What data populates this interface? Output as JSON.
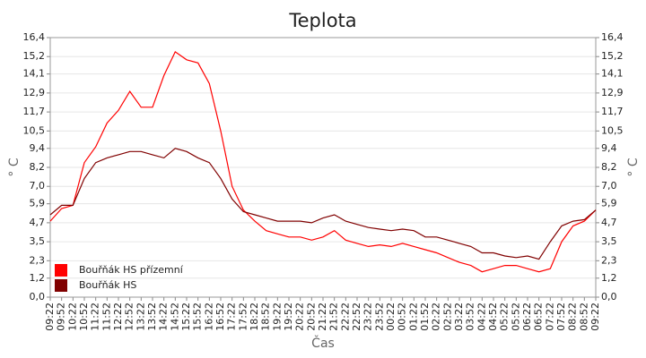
{
  "chart_data": {
    "type": "line",
    "title": "Teplota",
    "y_label": "° C",
    "x_label": "Čas",
    "categories": [
      "09:22",
      "09:52",
      "10:22",
      "10:52",
      "11:22",
      "11:52",
      "12:22",
      "12:52",
      "13:22",
      "13:52",
      "14:22",
      "14:52",
      "15:22",
      "15:52",
      "16:22",
      "16:52",
      "17:22",
      "17:52",
      "18:22",
      "18:52",
      "19:22",
      "19:52",
      "20:22",
      "20:52",
      "21:22",
      "21:52",
      "22:22",
      "22:52",
      "23:22",
      "23:52",
      "00:22",
      "00:52",
      "01:22",
      "01:52",
      "02:22",
      "02:52",
      "03:22",
      "03:52",
      "04:22",
      "04:52",
      "05:22",
      "05:52",
      "06:22",
      "06:52",
      "07:22",
      "07:52",
      "08:22",
      "08:52",
      "09:22"
    ],
    "series": [
      {
        "name": "Bouřňák HS přízemní",
        "color": "#ff0000",
        "values": [
          4.8,
          5.6,
          5.8,
          8.5,
          9.5,
          11.0,
          11.8,
          13.0,
          12.0,
          12.0,
          14.0,
          15.5,
          15.0,
          14.8,
          13.5,
          10.5,
          7.0,
          5.5,
          4.8,
          4.2,
          4.0,
          3.8,
          3.8,
          3.6,
          3.8,
          4.2,
          3.6,
          3.4,
          3.2,
          3.3,
          3.2,
          3.4,
          3.2,
          3.0,
          2.8,
          2.5,
          2.2,
          2.0,
          1.6,
          1.8,
          2.0,
          2.0,
          1.8,
          1.6,
          1.8,
          3.5,
          4.5,
          4.8,
          5.5
        ]
      },
      {
        "name": "Bouřňák HS",
        "color": "#800000",
        "values": [
          5.2,
          5.8,
          5.8,
          7.5,
          8.5,
          8.8,
          9.0,
          9.2,
          9.2,
          9.0,
          8.8,
          9.4,
          9.2,
          8.8,
          8.5,
          7.5,
          6.2,
          5.4,
          5.2,
          5.0,
          4.8,
          4.8,
          4.8,
          4.7,
          5.0,
          5.2,
          4.8,
          4.6,
          4.4,
          4.3,
          4.2,
          4.3,
          4.2,
          3.8,
          3.8,
          3.6,
          3.4,
          3.2,
          2.8,
          2.8,
          2.6,
          2.5,
          2.6,
          2.4,
          3.5,
          4.5,
          4.8,
          4.9,
          5.5
        ]
      }
    ],
    "ylim": [
      0,
      16.4
    ],
    "yticks": [
      {
        "value": 0,
        "label": "0,0"
      },
      {
        "value": 1.2,
        "label": "1,2"
      },
      {
        "value": 2.3,
        "label": "2,3"
      },
      {
        "value": 3.5,
        "label": "3,5"
      },
      {
        "value": 4.7,
        "label": "4,7"
      },
      {
        "value": 5.9,
        "label": "5,9"
      },
      {
        "value": 7.0,
        "label": "7,0"
      },
      {
        "value": 8.2,
        "label": "8,2"
      },
      {
        "value": 9.4,
        "label": "9,4"
      },
      {
        "value": 10.5,
        "label": "10,5"
      },
      {
        "value": 11.7,
        "label": "11,7"
      },
      {
        "value": 12.9,
        "label": "12,9"
      },
      {
        "value": 14.1,
        "label": "14,1"
      },
      {
        "value": 15.2,
        "label": "15,2"
      },
      {
        "value": 16.4,
        "label": "16,4"
      }
    ],
    "grid": true
  }
}
